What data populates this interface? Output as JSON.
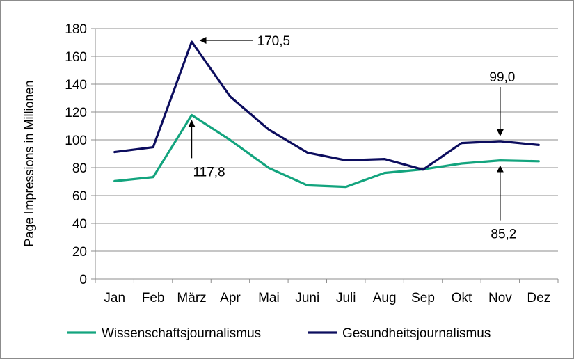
{
  "chart_data": {
    "type": "line",
    "title": "",
    "xlabel": "",
    "ylabel": "Page Impressions in Millionen",
    "categories": [
      "Jan",
      "Feb",
      "März",
      "Apr",
      "Mai",
      "Juni",
      "Juli",
      "Aug",
      "Sep",
      "Okt",
      "Nov",
      "Dez"
    ],
    "ylim": [
      0,
      180
    ],
    "yticks": [
      0,
      20,
      40,
      60,
      80,
      100,
      120,
      140,
      160,
      180
    ],
    "grid": true,
    "legend_position": "bottom",
    "series": [
      {
        "name": "Wissenschaftsjournalismus",
        "color": "#13A47E",
        "values": [
          70.3,
          73.2,
          117.8,
          99.8,
          79.8,
          67.3,
          66.2,
          76.2,
          78.8,
          83.0,
          85.2,
          84.6
        ]
      },
      {
        "name": "Gesundheitsjournalismus",
        "color": "#0C0D5E",
        "values": [
          91.2,
          94.7,
          170.5,
          131.0,
          107.3,
          90.8,
          85.3,
          86.2,
          78.6,
          97.7,
          99.0,
          96.3
        ]
      }
    ],
    "annotations": [
      {
        "text": "170,5",
        "series": 1,
        "category": "März"
      },
      {
        "text": "117,8",
        "series": 0,
        "category": "März"
      },
      {
        "text": "99,0",
        "series": 1,
        "category": "Nov"
      },
      {
        "text": "85,2",
        "series": 0,
        "category": "Nov"
      }
    ]
  }
}
